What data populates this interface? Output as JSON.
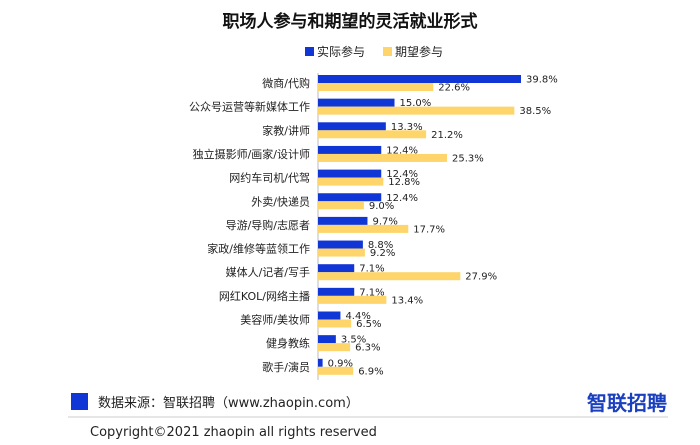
{
  "chart_data": {
    "type": "bar",
    "orientation": "horizontal",
    "title": "职场人参与和期望的灵活就业形式",
    "legend_placement": "top",
    "xlim": [
      0,
      45
    ],
    "grid": false,
    "categories": [
      "微商/代购",
      "公众号运营等新媒体工作",
      "家教/讲师",
      "独立摄影师/画家/设计师",
      "网约车司机/代驾",
      "外卖/快递员",
      "导游/导购/志愿者",
      "家政/维修等蓝领工作",
      "媒体人/记者/写手",
      "网红KOL/网络主播",
      "美容师/美妆师",
      "健身教练",
      "歌手/演员"
    ],
    "series": [
      {
        "name": "实际参与",
        "color": "#1136d6",
        "values": [
          39.8,
          15.0,
          13.3,
          12.4,
          12.4,
          12.4,
          9.7,
          8.8,
          7.1,
          7.1,
          4.4,
          3.5,
          0.9
        ],
        "labels": [
          "39.8%",
          "15.0%",
          "13.3%",
          "12.4%",
          "12.4%",
          "12.4%",
          "9.7%",
          "8.8%",
          "7.1%",
          "7.1%",
          "4.4%",
          "3.5%",
          "0.9%"
        ]
      },
      {
        "name": "期望参与",
        "color": "#fdd56a",
        "values": [
          22.6,
          38.5,
          21.2,
          25.3,
          12.8,
          9.0,
          17.7,
          9.2,
          27.9,
          13.4,
          6.5,
          6.3,
          6.9
        ],
        "labels": [
          "22.6%",
          "38.5%",
          "21.2%",
          "25.3%",
          "12.8%",
          "9.0%",
          "17.7%",
          "9.2%",
          "27.9%",
          "13.4%",
          "6.5%",
          "6.3%",
          "6.9%"
        ]
      }
    ]
  },
  "footer": {
    "source": "数据来源：智联招聘（www.zhaopin.com）",
    "source_square_color": "#1136d6",
    "logo": "智联招聘",
    "copyright": "Copyright©2021 zhaopin all rights reserved"
  }
}
